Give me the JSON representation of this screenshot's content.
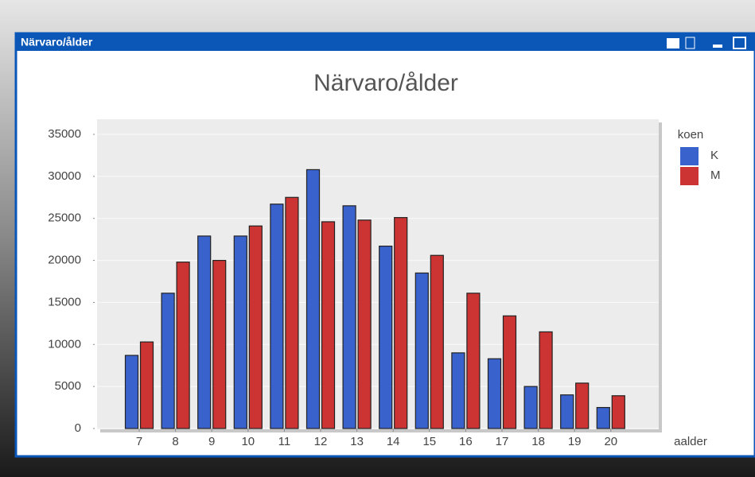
{
  "window": {
    "title": "Närvaro/ålder"
  },
  "chart_data": {
    "type": "bar",
    "title": "Närvaro/ålder",
    "xlabel": "aalder",
    "legend_title": "koen",
    "categories": [
      7,
      8,
      9,
      10,
      11,
      12,
      13,
      14,
      15,
      16,
      17,
      18,
      19,
      20
    ],
    "series": [
      {
        "name": "K",
        "color": "#3a62cc",
        "values": [
          8700,
          16100,
          22900,
          22900,
          26700,
          30800,
          26500,
          21700,
          18500,
          9000,
          8300,
          5000,
          4000,
          2500
        ]
      },
      {
        "name": "M",
        "color": "#cc3333",
        "values": [
          10300,
          19800,
          20000,
          24100,
          27500,
          24600,
          24800,
          25100,
          20600,
          16100,
          13400,
          11500,
          5400,
          3900
        ]
      }
    ],
    "ylim": [
      0,
      35000
    ],
    "yticks": [
      0,
      5000,
      10000,
      15000,
      20000,
      25000,
      30000,
      35000
    ],
    "grid": true,
    "legend": "right"
  }
}
